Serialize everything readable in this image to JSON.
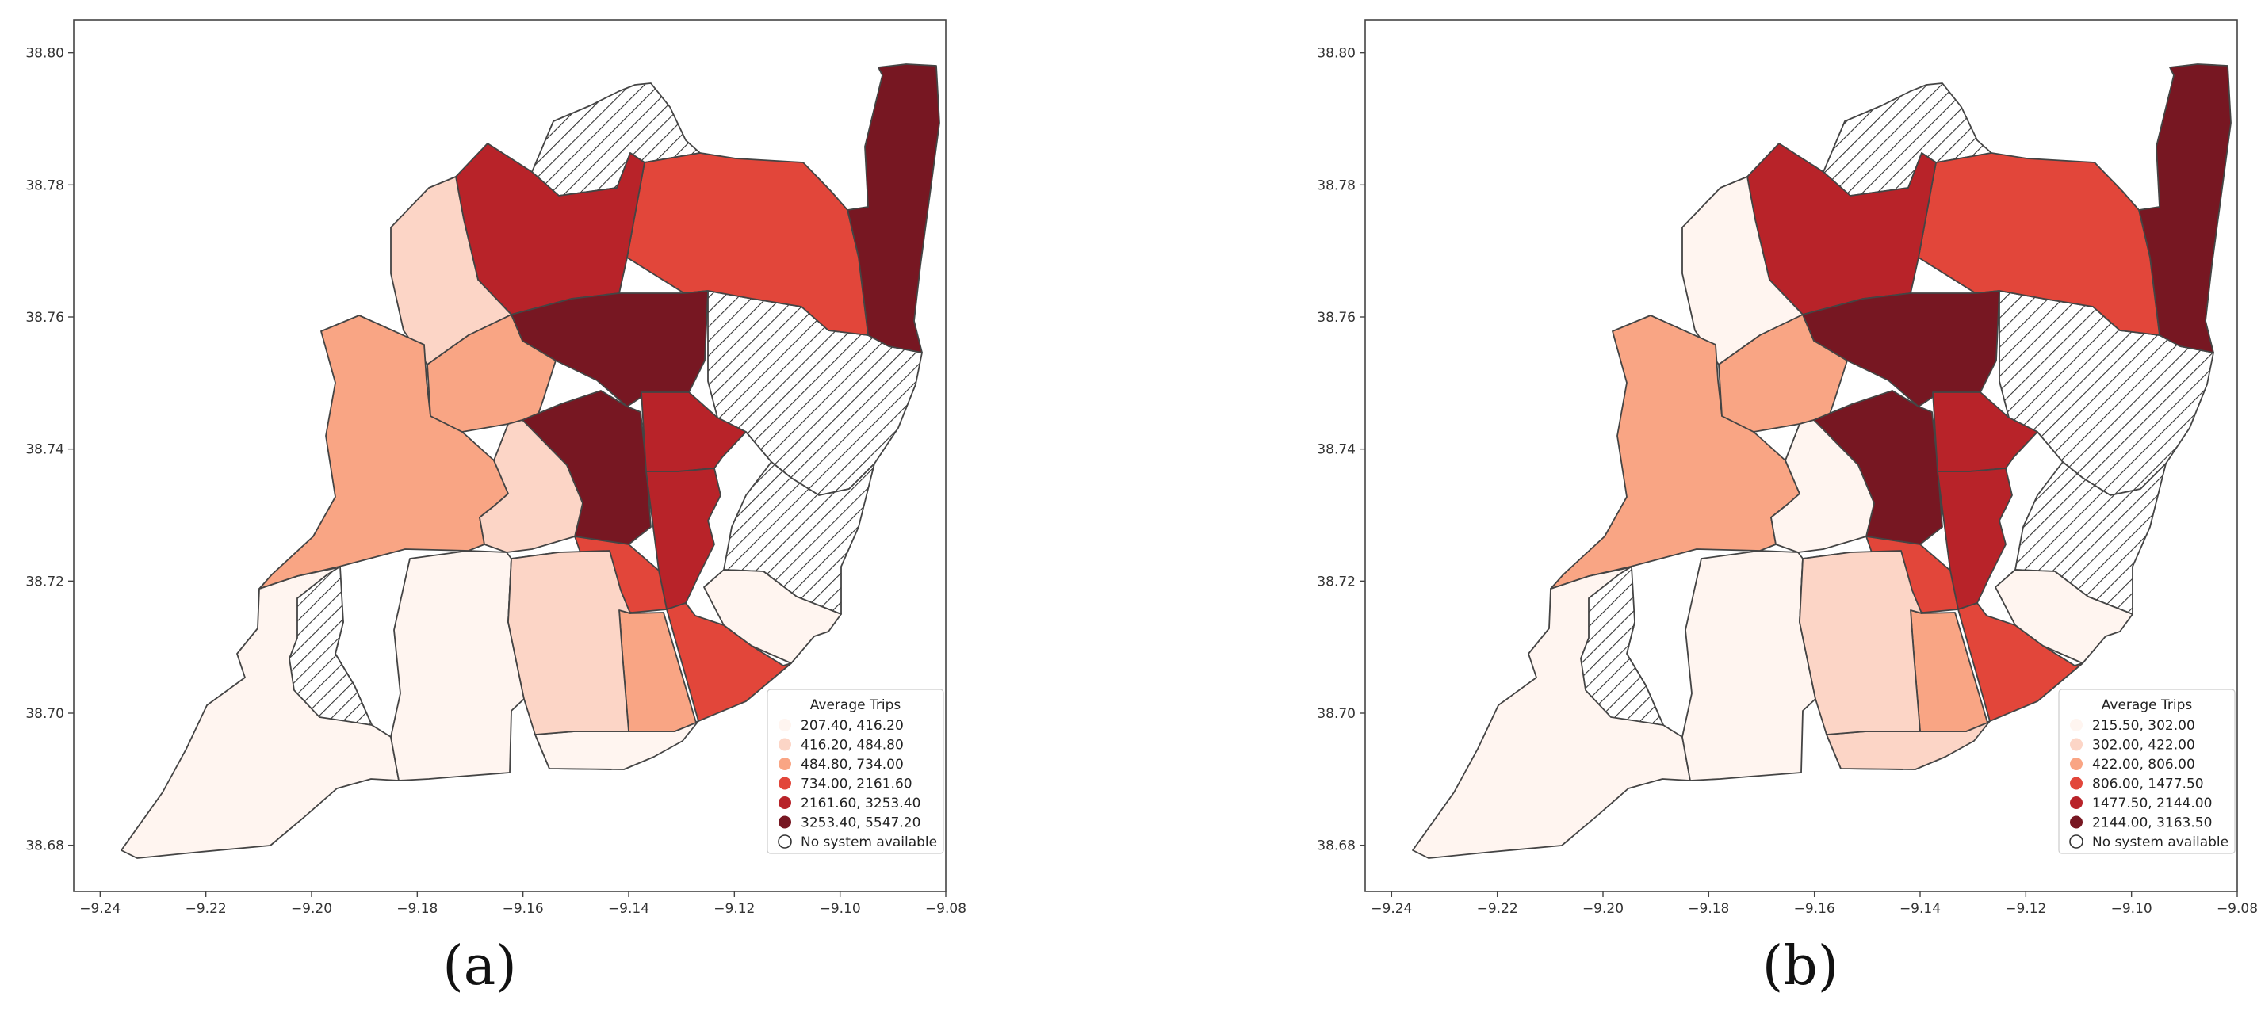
{
  "figure": {
    "captions": [
      "(a)",
      "(b)"
    ],
    "colors": {
      "class1": "#fff5f0",
      "class2": "#fcd5c6",
      "class3": "#f9a584",
      "class4": "#e2463a",
      "class5": "#b82329",
      "class6": "#771722",
      "no_system": "hatched",
      "border": "#444444"
    }
  },
  "chart_data": [
    {
      "type": "choropleth-map",
      "x_ticks": [
        "−9.24",
        "−9.22",
        "−9.20",
        "−9.18",
        "−9.16",
        "−9.14",
        "−9.12",
        "−9.10",
        "−9.08"
      ],
      "y_ticks": [
        "38.80",
        "38.78",
        "38.76",
        "38.74",
        "38.72",
        "38.70",
        "38.68"
      ],
      "xlim": [
        -9.245,
        -9.08
      ],
      "ylim": [
        38.673,
        38.805
      ],
      "legend": {
        "title": "Average Trips",
        "placement": "lower-right",
        "entries": [
          "207.40,  416.20",
          "416.20,  484.80",
          "484.80,  734.00",
          "734.00, 2161.60",
          "2161.60, 3253.40",
          "3253.40, 5547.20",
          "No system available"
        ]
      },
      "region_classes": {
        "R1": 6,
        "R2": 6,
        "R3": 6,
        "R4": 5,
        "R5": 5,
        "R6": 5,
        "R7": 4,
        "R8": 4,
        "R9": 4,
        "R10": 3,
        "R11": 3,
        "R12": 3,
        "R13": 2,
        "R14": 2,
        "R15": 2,
        "R16": 1,
        "R17": 1,
        "R18": 1,
        "R19": 1,
        "R20": 1,
        "R21": 0,
        "R22": 0,
        "R23": 0,
        "R24": 0
      }
    },
    {
      "type": "choropleth-map",
      "x_ticks": [
        "−9.24",
        "−9.22",
        "−9.20",
        "−9.18",
        "−9.16",
        "−9.14",
        "−9.12",
        "−9.10",
        "−9.08"
      ],
      "y_ticks": [
        "38.80",
        "38.78",
        "38.76",
        "38.74",
        "38.72",
        "38.70",
        "38.68"
      ],
      "xlim": [
        -9.245,
        -9.08
      ],
      "ylim": [
        38.673,
        38.805
      ],
      "legend": {
        "title": "Average Trips",
        "placement": "lower-right",
        "entries": [
          "215.50,  302.00",
          "302.00,  422.00",
          "422.00,  806.00",
          "806.00, 1477.50",
          "1477.50, 2144.00",
          "2144.00, 3163.50",
          "No system available"
        ]
      },
      "region_classes": {
        "R1": 6,
        "R2": 6,
        "R3": 6,
        "R4": 5,
        "R5": 5,
        "R6": 5,
        "R7": 4,
        "R8": 4,
        "R9": 4,
        "R10": 3,
        "R11": 3,
        "R12": 3,
        "R13": 1,
        "R14": 1,
        "R15": 2,
        "R16": 1,
        "R17": 1,
        "R18": 2,
        "R19": 1,
        "R20": 2,
        "R21": 0,
        "R22": 0,
        "R23": 0,
        "R24": 0
      }
    }
  ]
}
